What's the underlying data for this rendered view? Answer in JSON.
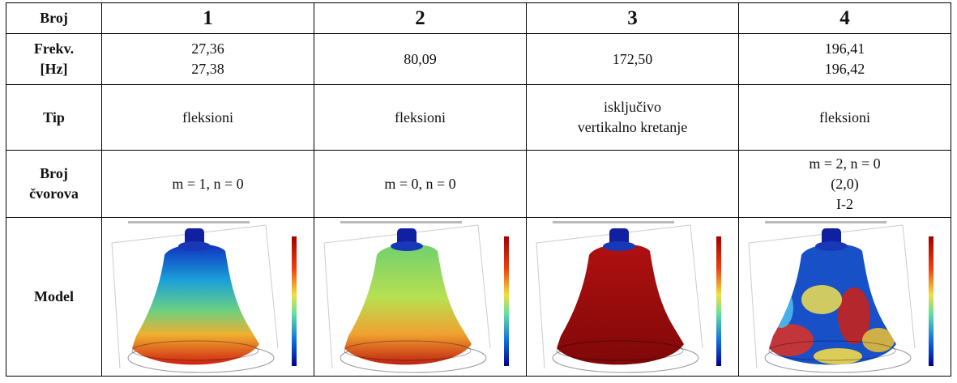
{
  "table": {
    "header": [
      "Broj",
      "1",
      "2",
      "3",
      "4"
    ],
    "frequency": {
      "label": [
        "Frekv.",
        "[Hz]"
      ],
      "cells": [
        [
          "27,36",
          "27,38"
        ],
        [
          "80,09"
        ],
        [
          "172,50"
        ],
        [
          "196,41",
          "196,42"
        ]
      ]
    },
    "type": {
      "label": [
        "Tip"
      ],
      "cells": [
        [
          "fleksioni"
        ],
        [
          "fleksioni"
        ],
        [
          "isključivo",
          "vertikalno kretanje"
        ],
        [
          "fleksioni"
        ]
      ]
    },
    "nodes": {
      "label": [
        "Broj",
        "čvorova"
      ],
      "cells": [
        [
          "m = 1, n = 0"
        ],
        [
          "m = 0, n = 0"
        ],
        [],
        [
          "m = 2, n = 0",
          "(2,0)",
          "I-2"
        ]
      ]
    },
    "model": {
      "label": [
        "Model"
      ]
    }
  }
}
